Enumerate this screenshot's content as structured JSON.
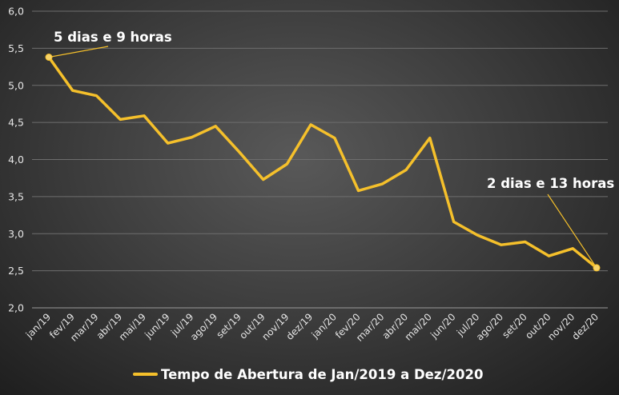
{
  "chart_data": {
    "type": "line",
    "categories": [
      "jan/19",
      "fev/19",
      "mar/19",
      "abr/19",
      "mai/19",
      "jun/19",
      "jul/19",
      "ago/19",
      "set/19",
      "out/19",
      "nov/19",
      "dez/19",
      "jan/20",
      "fev/20",
      "mar/20",
      "abr/20",
      "mai/20",
      "jun/20",
      "jul/20",
      "ago/20",
      "set/20",
      "out/20",
      "nov/20",
      "dez/20"
    ],
    "series": [
      {
        "name": "Tempo de Abertura de Jan/2019 a Dez/2020",
        "color": "#f5c02b",
        "values": [
          5.38,
          4.93,
          4.86,
          4.54,
          4.59,
          4.22,
          4.3,
          4.45,
          4.1,
          3.73,
          3.94,
          4.47,
          4.29,
          3.58,
          3.67,
          3.86,
          4.29,
          3.16,
          2.98,
          2.85,
          2.89,
          2.7,
          2.8,
          2.54
        ]
      }
    ],
    "ylim": [
      2.0,
      6.0
    ],
    "yticks": [
      "2,0",
      "2,5",
      "3,0",
      "3,5",
      "4,0",
      "4,5",
      "5,0",
      "5,5",
      "6,0"
    ],
    "grid": true,
    "legend_position": "bottom",
    "annotations": [
      {
        "text": "5 dias e 9 horas",
        "point_index": 0
      },
      {
        "text": "2 dias e 13 horas",
        "point_index": 23
      }
    ]
  },
  "colors": {
    "line": "#f5c02b",
    "grid": "#6e6e6e",
    "text": "#ffffff"
  }
}
